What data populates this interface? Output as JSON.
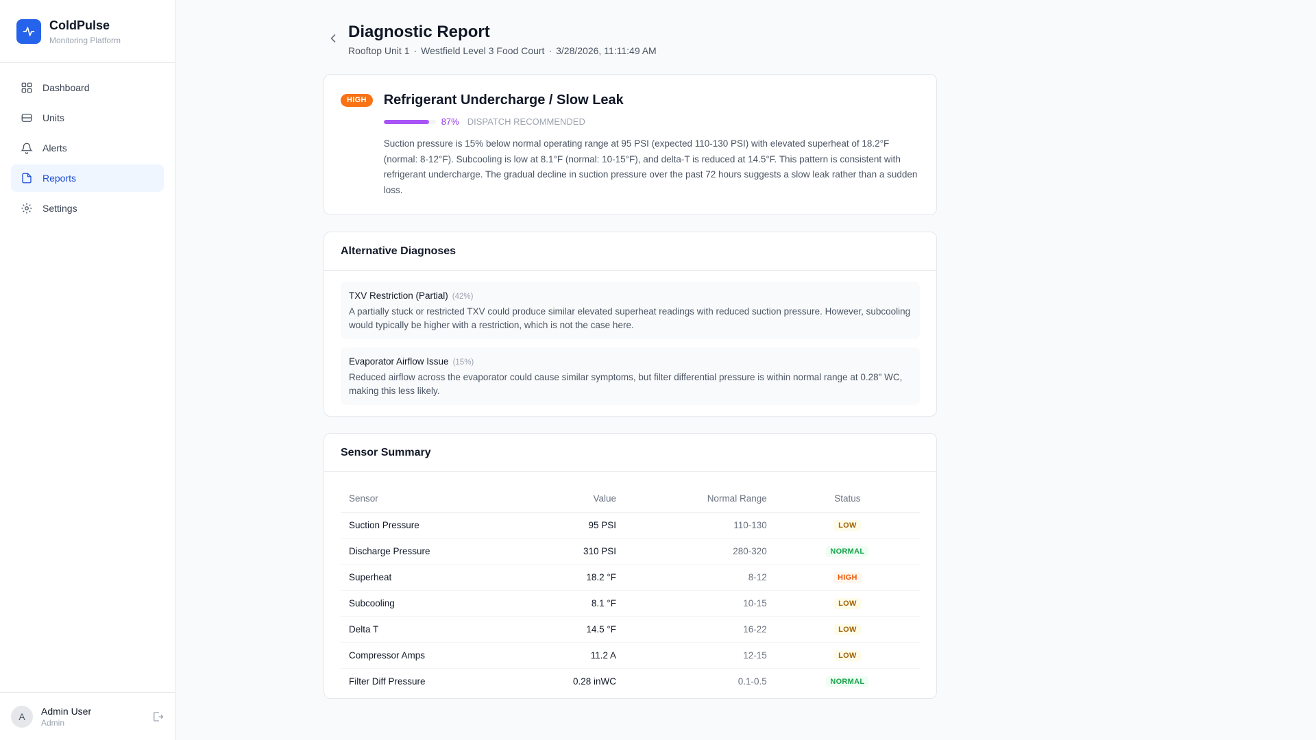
{
  "brand": {
    "name": "ColdPulse",
    "subtitle": "Monitoring Platform"
  },
  "nav": {
    "items": [
      {
        "label": "Dashboard",
        "icon": "grid-icon"
      },
      {
        "label": "Units",
        "icon": "server-icon"
      },
      {
        "label": "Alerts",
        "icon": "bell-icon"
      },
      {
        "label": "Reports",
        "icon": "file-icon",
        "active": true
      },
      {
        "label": "Settings",
        "icon": "gear-icon"
      }
    ]
  },
  "user": {
    "initial": "A",
    "name": "Admin User",
    "role": "Admin"
  },
  "header": {
    "title": "Diagnostic Report",
    "unit": "Rooftop Unit 1",
    "location": "Westfield Level 3 Food Court",
    "timestamp": "3/28/2026, 11:11:49 AM",
    "separator": "·"
  },
  "diagnosis": {
    "severity": "HIGH",
    "title": "Refrigerant Undercharge / Slow Leak",
    "confidence": 0.87,
    "confidence_label": "87%",
    "recommendation": "DISPATCH RECOMMENDED",
    "description": "Suction pressure is 15% below normal operating range at 95 PSI (expected 110-130 PSI) with elevated superheat of 18.2°F (normal: 8-12°F). Subcooling is low at 8.1°F (normal: 10-15°F), and delta-T is reduced at 14.5°F. This pattern is consistent with refrigerant undercharge. The gradual decline in suction pressure over the past 72 hours suggests a slow leak rather than a sudden loss."
  },
  "alternatives": {
    "title": "Alternative Diagnoses",
    "items": [
      {
        "name": "TXV Restriction (Partial)",
        "pct": "(42%)",
        "desc": "A partially stuck or restricted TXV could produce similar elevated superheat readings with reduced suction pressure. However, subcooling would typically be higher with a restriction, which is not the case here."
      },
      {
        "name": "Evaporator Airflow Issue",
        "pct": "(15%)",
        "desc": "Reduced airflow across the evaporator could cause similar symptoms, but filter differential pressure is within normal range at 0.28\" WC, making this less likely."
      }
    ]
  },
  "sensors": {
    "title": "Sensor Summary",
    "columns": {
      "sensor": "Sensor",
      "value": "Value",
      "range": "Normal Range",
      "status": "Status"
    },
    "rows": [
      {
        "sensor": "Suction Pressure",
        "value": "95 PSI",
        "range": "110-130",
        "status": "LOW"
      },
      {
        "sensor": "Discharge Pressure",
        "value": "310 PSI",
        "range": "280-320",
        "status": "NORMAL"
      },
      {
        "sensor": "Superheat",
        "value": "18.2 °F",
        "range": "8-12",
        "status": "HIGH"
      },
      {
        "sensor": "Subcooling",
        "value": "8.1 °F",
        "range": "10-15",
        "status": "LOW"
      },
      {
        "sensor": "Delta T",
        "value": "14.5 °F",
        "range": "16-22",
        "status": "LOW"
      },
      {
        "sensor": "Compressor Amps",
        "value": "11.2 A",
        "range": "12-15",
        "status": "LOW"
      },
      {
        "sensor": "Filter Diff Pressure",
        "value": "0.28 inWC",
        "range": "0.1-0.5",
        "status": "NORMAL"
      }
    ]
  },
  "colors": {
    "accent": "#2563eb",
    "high": "#f97316",
    "confidence": "#a855f7"
  }
}
